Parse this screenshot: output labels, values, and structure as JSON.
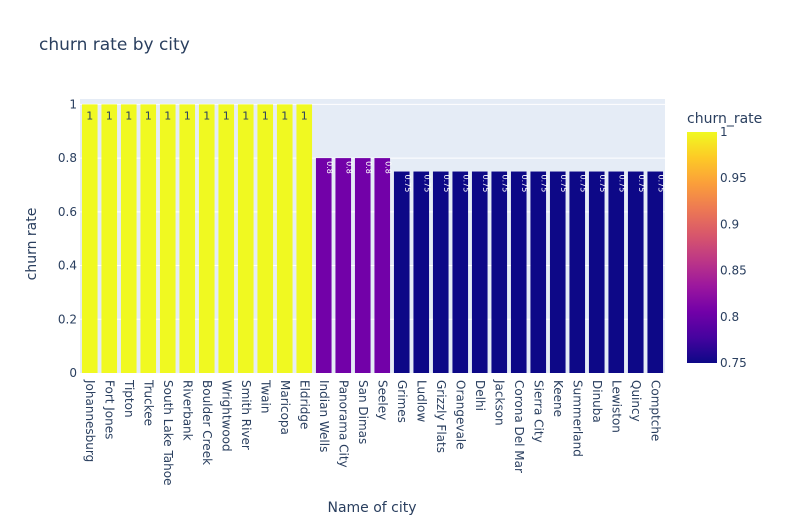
{
  "chart_data": {
    "type": "bar",
    "title": "churn rate by city",
    "xlabel": "Name of city",
    "ylabel": "churn rate",
    "ylim": [
      0,
      1.02
    ],
    "yticks": [
      0,
      0.2,
      0.4,
      0.6,
      0.8,
      1
    ],
    "ytick_labels": [
      "0",
      "0.2",
      "0.4",
      "0.6",
      "0.8",
      "1"
    ],
    "grid": true,
    "categories": [
      "Johannesburg",
      "Fort Jones",
      "Tipton",
      "Truckee",
      "South Lake Tahoe",
      "Riverbank",
      "Boulder Creek",
      "Wrightwood",
      "Smith River",
      "Twain",
      "Maricopa",
      "Eldridge",
      "Indian Wells",
      "Panorama City",
      "San Dimas",
      "Seeley",
      "Grimes",
      "Ludlow",
      "Grizzly Flats",
      "Orangevale",
      "Delhi",
      "Jackson",
      "Corona Del Mar",
      "Sierra City",
      "Keene",
      "Summerland",
      "Dinuba",
      "Lewiston",
      "Quincy",
      "Comptche"
    ],
    "values": [
      1,
      1,
      1,
      1,
      1,
      1,
      1,
      1,
      1,
      1,
      1,
      1,
      0.8,
      0.8,
      0.8,
      0.8,
      0.75,
      0.75,
      0.75,
      0.75,
      0.75,
      0.75,
      0.75,
      0.75,
      0.75,
      0.75,
      0.75,
      0.75,
      0.75,
      0.75
    ],
    "data_labels": [
      "1",
      "1",
      "1",
      "1",
      "1",
      "1",
      "1",
      "1",
      "1",
      "1",
      "1",
      "1",
      "0.8",
      "0.8",
      "0.8",
      "0.8",
      "0.75",
      "0.75",
      "0.75",
      "0.75",
      "0.75",
      "0.75",
      "0.75",
      "0.75",
      "0.75",
      "0.75",
      "0.75",
      "0.75",
      "0.75",
      "0.75"
    ],
    "colors": {
      "1": "#f0f921",
      "0.8": "#7201a8",
      "0.75": "#0d0887",
      "plot_bg": "#e5ecf6",
      "gridline": "#ffffff",
      "text": "#2a3f5f"
    },
    "colorbar": {
      "title": "churn_rate",
      "range": [
        0.75,
        1
      ],
      "ticks": [
        0.75,
        0.8,
        0.85,
        0.9,
        0.95,
        1
      ],
      "tick_labels": [
        "0.75",
        "0.8",
        "0.85",
        "0.9",
        "0.95",
        "1"
      ],
      "colorscale": [
        "#0d0887",
        "#46039f",
        "#7201a8",
        "#9c179e",
        "#bd3786",
        "#d8576b",
        "#ed7953",
        "#fb9f3a",
        "#fdca26",
        "#f0f921"
      ]
    }
  }
}
